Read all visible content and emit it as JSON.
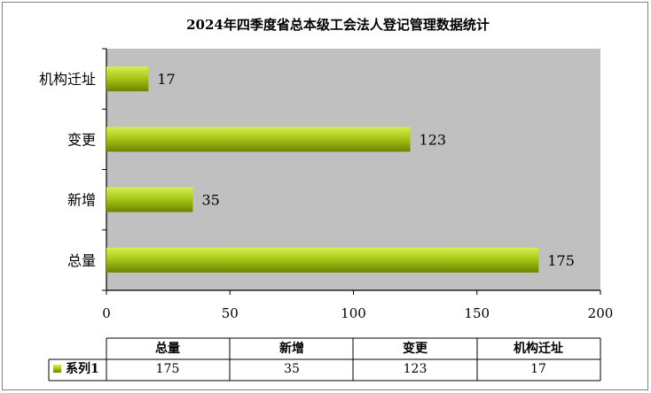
{
  "chart_data": {
    "type": "bar",
    "orientation": "horizontal",
    "title": "2024年四季度省总本级工会法人登记管理数据统计",
    "categories": [
      "机构迁址",
      "变更",
      "新增",
      "总量"
    ],
    "series": [
      {
        "name": "系列1",
        "values": [
          17,
          123,
          35,
          175
        ]
      }
    ],
    "xlim": [
      0,
      200
    ],
    "x_ticks": [
      0,
      50,
      100,
      150,
      200
    ],
    "grid": false,
    "legend": "data-table",
    "colors": {
      "plot_area": "#c0c0c0",
      "bar_light": "#c8e63c",
      "bar_dark": "#6e8a00"
    },
    "data_table": {
      "headers": [
        "总量",
        "新增",
        "变更",
        "机构迁址"
      ],
      "row_label": "系列1",
      "values": [
        "175",
        "35",
        "123",
        "17"
      ]
    }
  }
}
